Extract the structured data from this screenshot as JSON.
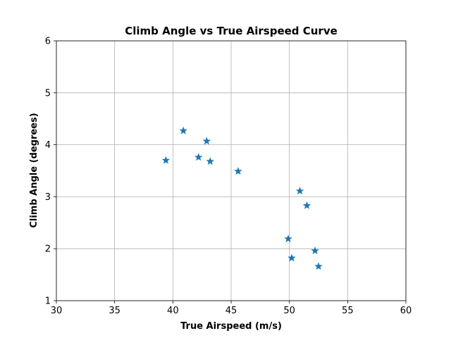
{
  "chart_data": {
    "type": "scatter",
    "title": "Climb Angle vs True Airspeed Curve",
    "xlabel": "True Airspeed (m/s)",
    "ylabel": "Climb Angle (degrees)",
    "xlim": [
      30,
      60
    ],
    "ylim": [
      1,
      6
    ],
    "xticks": [
      "30",
      "35",
      "40",
      "45",
      "50",
      "55",
      "60"
    ],
    "yticks": [
      "1",
      "2",
      "3",
      "4",
      "5",
      "6"
    ],
    "grid": true,
    "marker": "star",
    "color": "#1f77b4",
    "points": [
      {
        "x": 39.4,
        "y": 3.7
      },
      {
        "x": 40.9,
        "y": 4.27
      },
      {
        "x": 42.2,
        "y": 3.76
      },
      {
        "x": 42.9,
        "y": 4.07
      },
      {
        "x": 43.2,
        "y": 3.68
      },
      {
        "x": 45.6,
        "y": 3.49
      },
      {
        "x": 49.9,
        "y": 2.19
      },
      {
        "x": 50.2,
        "y": 1.82
      },
      {
        "x": 50.9,
        "y": 3.11
      },
      {
        "x": 51.5,
        "y": 2.83
      },
      {
        "x": 52.2,
        "y": 1.96
      },
      {
        "x": 52.5,
        "y": 1.66
      }
    ]
  }
}
